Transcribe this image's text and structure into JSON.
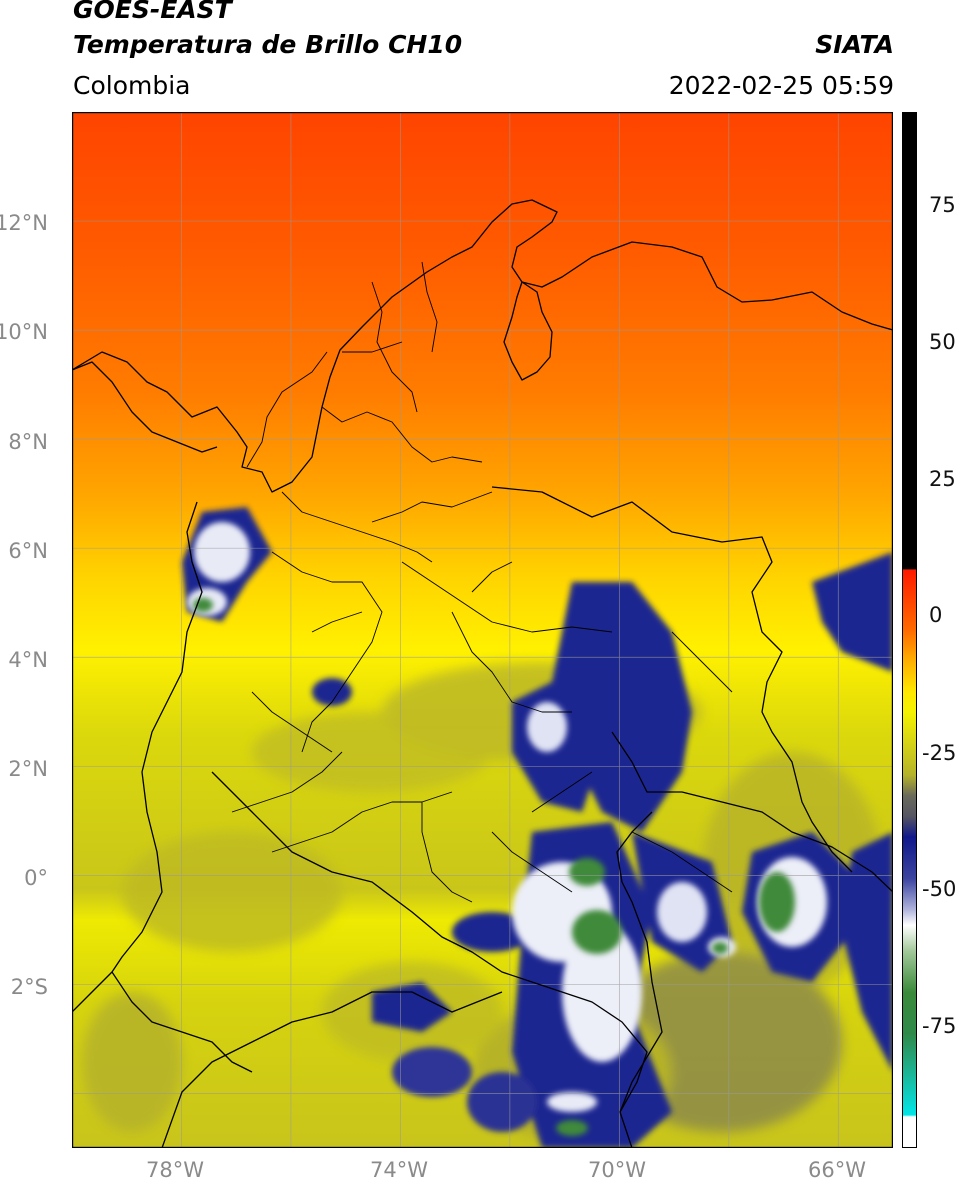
{
  "header": {
    "satellite": "GOES-EAST",
    "product": "Temperatura de Brillo CH10",
    "region": "Colombia",
    "agency": "SIATA",
    "datetime": "2022-02-25 05:59"
  },
  "map": {
    "lat_labels": [
      "12°N",
      "10°N",
      "8°N",
      "6°N",
      "4°N",
      "2°N",
      "0°",
      "2°S"
    ],
    "lon_labels": [
      "78°W",
      "74°W",
      "70°W",
      "66°W"
    ],
    "extent": {
      "lon_min": -80,
      "lon_max": -65,
      "lat_min": -5,
      "lat_max": 14
    }
  },
  "colorbar": {
    "tick_labels": [
      "75",
      "50",
      "25",
      "0",
      "-25",
      "-50",
      "-75"
    ],
    "range": [
      -95,
      90
    ],
    "colors": {
      "hot": "#ff3a00",
      "orange": "#ff8a00",
      "yellow": "#f6f300",
      "olive": "#c4c31a",
      "grey": "#5c5c66",
      "navy": "#0d1a8a",
      "white": "#ffffff",
      "green": "#3f8a3a",
      "cyan": "#00e0e6",
      "black": "#000000"
    }
  }
}
